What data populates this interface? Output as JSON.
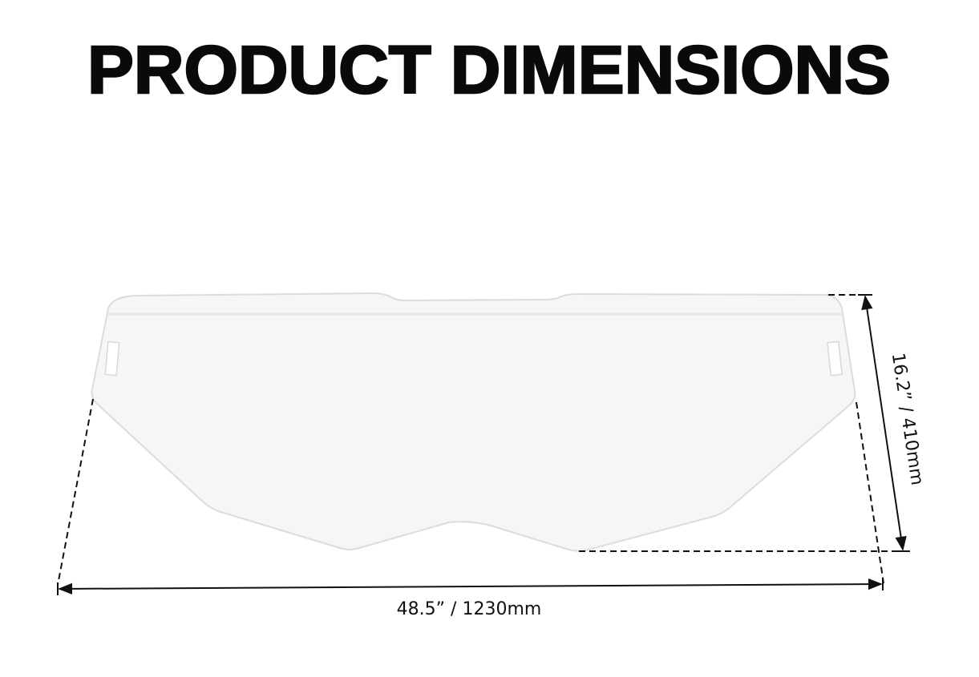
{
  "title": "PRODUCT DIMENSIONS",
  "dimensions": {
    "width_label": "48.5” / 1230mm",
    "height_label": "16.2” / 410mm"
  },
  "colors": {
    "text": "#0a0a0a",
    "panel_fill": "#f6f6f8",
    "panel_outline": "#dcdcdc",
    "dimension_lines": "#111111"
  }
}
